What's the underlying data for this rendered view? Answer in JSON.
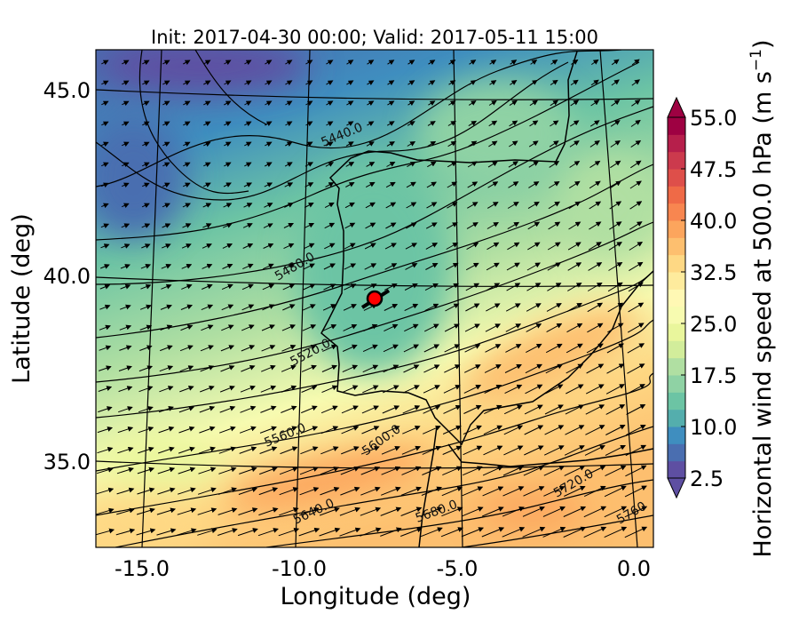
{
  "title": "Init: 2017-04-30 00:00; Valid: 2017-05-11 15:00",
  "chart_data": {
    "type": "map",
    "projection": "conic",
    "xlabel": "Longitude (deg)",
    "ylabel": "Latitude (deg)",
    "x_ticks": [
      "-15.0",
      "-10.0",
      "-5.0",
      "0.0"
    ],
    "y_ticks": [
      "35.0",
      "40.0",
      "45.0"
    ],
    "lon_range": [
      -16,
      0
    ],
    "lat_range": [
      33,
      46
    ],
    "grid": true,
    "filled_field": {
      "name": "Horizontal wind speed at 500.0 hPa",
      "colormap": "Spectral_r",
      "levels_min": 2.5,
      "levels_max": 55.0,
      "level_step": 2.5,
      "colorbar_label": "Horizontal wind speed at 500.0 hPa (m s",
      "colorbar_unit_exp": "−1",
      "colorbar_label_end": ")",
      "colorbar_ticks": [
        "2.5",
        "10.0",
        "17.5",
        "25.0",
        "32.5",
        "40.0",
        "47.5",
        "55.0"
      ],
      "colors": [
        "#5e4fa2",
        "#4a6eb0",
        "#3f8ebf",
        "#54aead",
        "#6cc4a4",
        "#8fd2a4",
        "#b0dfa2",
        "#d2ed9b",
        "#e9f69c",
        "#f7fbb0",
        "#fff8b4",
        "#feeb9d",
        "#fed884",
        "#fdbf6f",
        "#fca55d",
        "#f88650",
        "#ef6a47",
        "#de4f4a",
        "#cc3a4d",
        "#b61f4b",
        "#9e0142"
      ],
      "extend": "both"
    },
    "contours": {
      "field": "geopotential height at 500.0 hPa",
      "labels": [
        "5440.0",
        "5480.0",
        "5520.0",
        "5560.0",
        "5600.0",
        "5640.0",
        "5680.0",
        "5720.0",
        "5760"
      ]
    },
    "vectors": "wind arrows from WSW",
    "marker": {
      "lon": -7.8,
      "lat": 39.3,
      "color": "#ff0000"
    }
  }
}
